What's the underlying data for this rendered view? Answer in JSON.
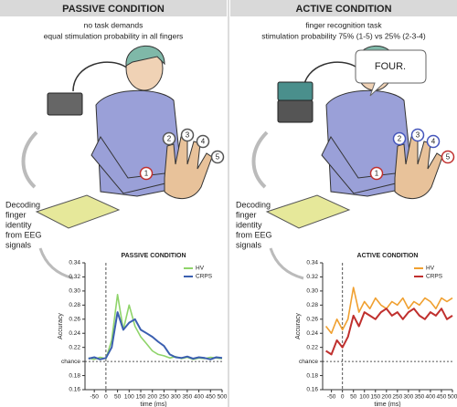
{
  "panels": [
    {
      "header": "PASSIVE CONDITION",
      "lines": [
        "no task demands",
        "equal stimulation probability in all fingers"
      ],
      "fingers": [
        "1",
        "2",
        "3",
        "4",
        "5"
      ],
      "decoding": [
        "Decoding",
        "finger",
        "identity",
        "from EEG",
        "signals"
      ]
    },
    {
      "header": "ACTIVE CONDITION",
      "lines": [
        "finger recognition task",
        "stimulation probability 75% (1-5) vs 25% (2-3-4)"
      ],
      "fingers": [
        "1",
        "2",
        "3",
        "4",
        "5"
      ],
      "speech": "FOUR.",
      "decoding": [
        "Decoding",
        "finger",
        "identity",
        "from EEG",
        "signals"
      ]
    }
  ],
  "chart_data": [
    {
      "type": "line",
      "title": "PASSIVE CONDITION",
      "xlabel": "time (ms)",
      "ylabel": "Accuracy",
      "legend": "upper right",
      "x": [
        -75,
        -50,
        -25,
        0,
        25,
        50,
        75,
        100,
        125,
        150,
        175,
        200,
        225,
        250,
        275,
        300,
        325,
        350,
        375,
        400,
        425,
        450,
        475,
        500
      ],
      "series": [
        {
          "name": "HV",
          "color": "#8fd46a",
          "values": [
            0.205,
            0.203,
            0.206,
            0.204,
            0.23,
            0.295,
            0.245,
            0.28,
            0.25,
            0.235,
            0.225,
            0.215,
            0.21,
            0.208,
            0.205,
            0.207,
            0.204,
            0.206,
            0.203,
            0.205,
            0.204,
            0.206,
            0.205,
            0.204
          ]
        },
        {
          "name": "CRPS",
          "color": "#3b5fb0",
          "values": [
            0.204,
            0.206,
            0.203,
            0.205,
            0.22,
            0.27,
            0.245,
            0.255,
            0.26,
            0.245,
            0.24,
            0.235,
            0.228,
            0.222,
            0.21,
            0.206,
            0.205,
            0.207,
            0.204,
            0.206,
            0.205,
            0.203,
            0.206,
            0.205
          ]
        }
      ],
      "xlim": [
        -90,
        500
      ],
      "xticks": [
        -50,
        0,
        50,
        100,
        150,
        200,
        250,
        300,
        350,
        400,
        450,
        500
      ],
      "ylim": [
        0.16,
        0.34
      ],
      "yticks": [
        0.16,
        0.18,
        {
          "value": 0.2,
          "label": "chance"
        },
        0.22,
        0.24,
        0.26,
        0.28,
        {
          "value": 0.3,
          "label": "0.30"
        },
        0.32,
        0.34
      ],
      "reference_line": 0.2,
      "vline": 0
    },
    {
      "type": "line",
      "title": "ACTIVE CONDITION",
      "xlabel": "time (ms)",
      "ylabel": "Accuracy",
      "legend": "upper right",
      "x": [
        -75,
        -50,
        -25,
        0,
        25,
        50,
        75,
        100,
        125,
        150,
        175,
        200,
        225,
        250,
        275,
        300,
        325,
        350,
        375,
        400,
        425,
        450,
        475,
        500
      ],
      "series": [
        {
          "name": "HV",
          "color": "#f0a030",
          "values": [
            0.25,
            0.24,
            0.26,
            0.245,
            0.26,
            0.305,
            0.27,
            0.285,
            0.275,
            0.29,
            0.28,
            0.275,
            0.285,
            0.28,
            0.29,
            0.275,
            0.285,
            0.28,
            0.29,
            0.285,
            0.275,
            0.29,
            0.285,
            0.29
          ]
        },
        {
          "name": "CRPS",
          "color": "#c0302e",
          "values": [
            0.215,
            0.21,
            0.23,
            0.22,
            0.235,
            0.265,
            0.25,
            0.27,
            0.265,
            0.26,
            0.27,
            0.275,
            0.265,
            0.27,
            0.26,
            0.27,
            0.275,
            0.265,
            0.26,
            0.27,
            0.265,
            0.275,
            0.26,
            0.265
          ]
        }
      ],
      "xlim": [
        -90,
        500
      ],
      "xticks": [
        -50,
        0,
        50,
        100,
        150,
        200,
        250,
        300,
        350,
        400,
        450,
        500
      ],
      "ylim": [
        0.16,
        0.34
      ],
      "yticks": [
        0.16,
        0.18,
        {
          "value": 0.2,
          "label": "chance"
        },
        0.22,
        0.24,
        0.26,
        0.28,
        {
          "value": 0.3,
          "label": "0.30"
        },
        0.32,
        0.34
      ],
      "reference_line": 0.2,
      "vline": 0
    }
  ]
}
